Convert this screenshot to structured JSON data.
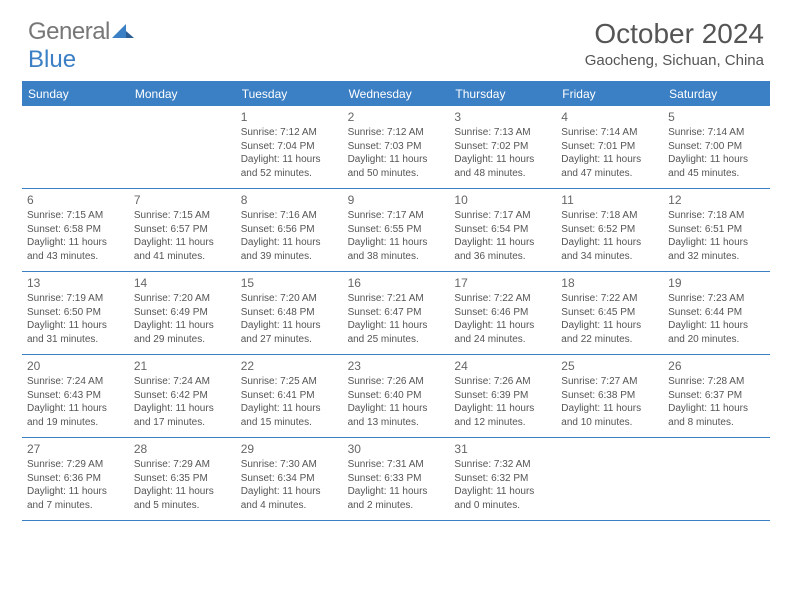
{
  "logo": {
    "text1": "General",
    "text2": "Blue"
  },
  "title": "October 2024",
  "location": "Gaocheng, Sichuan, China",
  "header_bg": "#3b7fc4",
  "border_color": "#3b7fc4",
  "text_color": "#555",
  "daynames": [
    "Sunday",
    "Monday",
    "Tuesday",
    "Wednesday",
    "Thursday",
    "Friday",
    "Saturday"
  ],
  "weeks": [
    [
      null,
      null,
      {
        "n": "1",
        "sr": "Sunrise: 7:12 AM",
        "ss": "Sunset: 7:04 PM",
        "dl1": "Daylight: 11 hours",
        "dl2": "and 52 minutes."
      },
      {
        "n": "2",
        "sr": "Sunrise: 7:12 AM",
        "ss": "Sunset: 7:03 PM",
        "dl1": "Daylight: 11 hours",
        "dl2": "and 50 minutes."
      },
      {
        "n": "3",
        "sr": "Sunrise: 7:13 AM",
        "ss": "Sunset: 7:02 PM",
        "dl1": "Daylight: 11 hours",
        "dl2": "and 48 minutes."
      },
      {
        "n": "4",
        "sr": "Sunrise: 7:14 AM",
        "ss": "Sunset: 7:01 PM",
        "dl1": "Daylight: 11 hours",
        "dl2": "and 47 minutes."
      },
      {
        "n": "5",
        "sr": "Sunrise: 7:14 AM",
        "ss": "Sunset: 7:00 PM",
        "dl1": "Daylight: 11 hours",
        "dl2": "and 45 minutes."
      }
    ],
    [
      {
        "n": "6",
        "sr": "Sunrise: 7:15 AM",
        "ss": "Sunset: 6:58 PM",
        "dl1": "Daylight: 11 hours",
        "dl2": "and 43 minutes."
      },
      {
        "n": "7",
        "sr": "Sunrise: 7:15 AM",
        "ss": "Sunset: 6:57 PM",
        "dl1": "Daylight: 11 hours",
        "dl2": "and 41 minutes."
      },
      {
        "n": "8",
        "sr": "Sunrise: 7:16 AM",
        "ss": "Sunset: 6:56 PM",
        "dl1": "Daylight: 11 hours",
        "dl2": "and 39 minutes."
      },
      {
        "n": "9",
        "sr": "Sunrise: 7:17 AM",
        "ss": "Sunset: 6:55 PM",
        "dl1": "Daylight: 11 hours",
        "dl2": "and 38 minutes."
      },
      {
        "n": "10",
        "sr": "Sunrise: 7:17 AM",
        "ss": "Sunset: 6:54 PM",
        "dl1": "Daylight: 11 hours",
        "dl2": "and 36 minutes."
      },
      {
        "n": "11",
        "sr": "Sunrise: 7:18 AM",
        "ss": "Sunset: 6:52 PM",
        "dl1": "Daylight: 11 hours",
        "dl2": "and 34 minutes."
      },
      {
        "n": "12",
        "sr": "Sunrise: 7:18 AM",
        "ss": "Sunset: 6:51 PM",
        "dl1": "Daylight: 11 hours",
        "dl2": "and 32 minutes."
      }
    ],
    [
      {
        "n": "13",
        "sr": "Sunrise: 7:19 AM",
        "ss": "Sunset: 6:50 PM",
        "dl1": "Daylight: 11 hours",
        "dl2": "and 31 minutes."
      },
      {
        "n": "14",
        "sr": "Sunrise: 7:20 AM",
        "ss": "Sunset: 6:49 PM",
        "dl1": "Daylight: 11 hours",
        "dl2": "and 29 minutes."
      },
      {
        "n": "15",
        "sr": "Sunrise: 7:20 AM",
        "ss": "Sunset: 6:48 PM",
        "dl1": "Daylight: 11 hours",
        "dl2": "and 27 minutes."
      },
      {
        "n": "16",
        "sr": "Sunrise: 7:21 AM",
        "ss": "Sunset: 6:47 PM",
        "dl1": "Daylight: 11 hours",
        "dl2": "and 25 minutes."
      },
      {
        "n": "17",
        "sr": "Sunrise: 7:22 AM",
        "ss": "Sunset: 6:46 PM",
        "dl1": "Daylight: 11 hours",
        "dl2": "and 24 minutes."
      },
      {
        "n": "18",
        "sr": "Sunrise: 7:22 AM",
        "ss": "Sunset: 6:45 PM",
        "dl1": "Daylight: 11 hours",
        "dl2": "and 22 minutes."
      },
      {
        "n": "19",
        "sr": "Sunrise: 7:23 AM",
        "ss": "Sunset: 6:44 PM",
        "dl1": "Daylight: 11 hours",
        "dl2": "and 20 minutes."
      }
    ],
    [
      {
        "n": "20",
        "sr": "Sunrise: 7:24 AM",
        "ss": "Sunset: 6:43 PM",
        "dl1": "Daylight: 11 hours",
        "dl2": "and 19 minutes."
      },
      {
        "n": "21",
        "sr": "Sunrise: 7:24 AM",
        "ss": "Sunset: 6:42 PM",
        "dl1": "Daylight: 11 hours",
        "dl2": "and 17 minutes."
      },
      {
        "n": "22",
        "sr": "Sunrise: 7:25 AM",
        "ss": "Sunset: 6:41 PM",
        "dl1": "Daylight: 11 hours",
        "dl2": "and 15 minutes."
      },
      {
        "n": "23",
        "sr": "Sunrise: 7:26 AM",
        "ss": "Sunset: 6:40 PM",
        "dl1": "Daylight: 11 hours",
        "dl2": "and 13 minutes."
      },
      {
        "n": "24",
        "sr": "Sunrise: 7:26 AM",
        "ss": "Sunset: 6:39 PM",
        "dl1": "Daylight: 11 hours",
        "dl2": "and 12 minutes."
      },
      {
        "n": "25",
        "sr": "Sunrise: 7:27 AM",
        "ss": "Sunset: 6:38 PM",
        "dl1": "Daylight: 11 hours",
        "dl2": "and 10 minutes."
      },
      {
        "n": "26",
        "sr": "Sunrise: 7:28 AM",
        "ss": "Sunset: 6:37 PM",
        "dl1": "Daylight: 11 hours",
        "dl2": "and 8 minutes."
      }
    ],
    [
      {
        "n": "27",
        "sr": "Sunrise: 7:29 AM",
        "ss": "Sunset: 6:36 PM",
        "dl1": "Daylight: 11 hours",
        "dl2": "and 7 minutes."
      },
      {
        "n": "28",
        "sr": "Sunrise: 7:29 AM",
        "ss": "Sunset: 6:35 PM",
        "dl1": "Daylight: 11 hours",
        "dl2": "and 5 minutes."
      },
      {
        "n": "29",
        "sr": "Sunrise: 7:30 AM",
        "ss": "Sunset: 6:34 PM",
        "dl1": "Daylight: 11 hours",
        "dl2": "and 4 minutes."
      },
      {
        "n": "30",
        "sr": "Sunrise: 7:31 AM",
        "ss": "Sunset: 6:33 PM",
        "dl1": "Daylight: 11 hours",
        "dl2": "and 2 minutes."
      },
      {
        "n": "31",
        "sr": "Sunrise: 7:32 AM",
        "ss": "Sunset: 6:32 PM",
        "dl1": "Daylight: 11 hours",
        "dl2": "and 0 minutes."
      },
      null,
      null
    ]
  ]
}
